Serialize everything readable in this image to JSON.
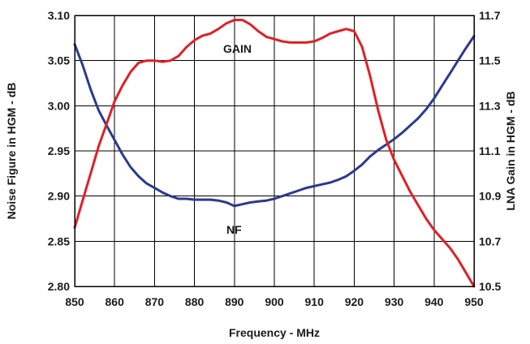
{
  "chart_data": {
    "type": "line",
    "xlabel": "Frequency - MHz",
    "ylabel_left": "Noise Figure in HGM - dB",
    "ylabel_right": "LNA Gain in HGM - dB",
    "xlim": [
      850,
      950
    ],
    "ylim_left": [
      2.8,
      3.1
    ],
    "ylim_right": [
      10.5,
      11.7
    ],
    "x_ticks": [
      "850",
      "860",
      "870",
      "880",
      "890",
      "900",
      "910",
      "920",
      "930",
      "940",
      "950"
    ],
    "y_left_ticks": [
      "2.80",
      "2.85",
      "2.90",
      "2.95",
      "3.00",
      "3.05",
      "3.10"
    ],
    "y_right_ticks": [
      "10.5",
      "10.7",
      "10.9",
      "11.1",
      "11.3",
      "11.5",
      "11.7"
    ],
    "grid": true,
    "annotations": [
      {
        "text": "GAIN",
        "series": "gain"
      },
      {
        "text": "NF",
        "series": "nf"
      }
    ],
    "series": [
      {
        "id": "nf",
        "axis": "left",
        "color": "#2b3a8f",
        "x": [
          850,
          852,
          854,
          856,
          858,
          860,
          862,
          864,
          866,
          868,
          870,
          872,
          874,
          876,
          878,
          880,
          882,
          884,
          886,
          888,
          890,
          892,
          894,
          896,
          898,
          900,
          902,
          904,
          906,
          908,
          910,
          912,
          914,
          916,
          918,
          920,
          922,
          924,
          926,
          928,
          930,
          932,
          934,
          936,
          938,
          940,
          942,
          944,
          946,
          948,
          950
        ],
        "values": [
          3.068,
          3.045,
          3.018,
          2.995,
          2.978,
          2.962,
          2.946,
          2.932,
          2.922,
          2.914,
          2.909,
          2.904,
          2.9,
          2.897,
          2.897,
          2.896,
          2.896,
          2.896,
          2.895,
          2.893,
          2.889,
          2.891,
          2.893,
          2.894,
          2.895,
          2.897,
          2.9,
          2.903,
          2.906,
          2.909,
          2.911,
          2.913,
          2.915,
          2.918,
          2.922,
          2.928,
          2.935,
          2.944,
          2.951,
          2.957,
          2.963,
          2.97,
          2.978,
          2.986,
          2.996,
          3.008,
          3.022,
          3.036,
          3.05,
          3.064,
          3.077
        ]
      },
      {
        "id": "gain",
        "axis": "right",
        "color": "#e02026",
        "x": [
          850,
          852,
          854,
          856,
          858,
          860,
          862,
          864,
          866,
          868,
          870,
          872,
          874,
          876,
          878,
          880,
          882,
          884,
          886,
          888,
          890,
          892,
          894,
          896,
          898,
          900,
          902,
          904,
          906,
          908,
          910,
          912,
          914,
          916,
          918,
          920,
          922,
          924,
          926,
          928,
          930,
          932,
          934,
          936,
          938,
          940,
          942,
          944,
          946,
          948,
          950
        ],
        "values": [
          10.76,
          10.88,
          11.0,
          11.12,
          11.22,
          11.32,
          11.39,
          11.45,
          11.49,
          11.5,
          11.5,
          11.495,
          11.5,
          11.52,
          11.56,
          11.59,
          11.61,
          11.62,
          11.64,
          11.665,
          11.68,
          11.68,
          11.66,
          11.63,
          11.605,
          11.595,
          11.585,
          11.58,
          11.58,
          11.58,
          11.585,
          11.6,
          11.62,
          11.63,
          11.64,
          11.63,
          11.56,
          11.43,
          11.28,
          11.15,
          11.06,
          10.99,
          10.92,
          10.86,
          10.8,
          10.75,
          10.71,
          10.67,
          10.62,
          10.56,
          10.5
        ]
      }
    ]
  }
}
